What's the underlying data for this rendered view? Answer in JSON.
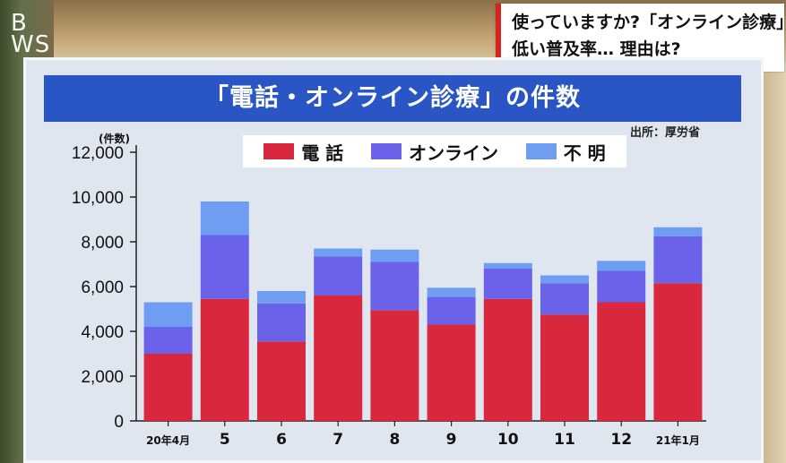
{
  "logo": {
    "line1": "B",
    "line2": "WS"
  },
  "caption": {
    "line1": "使っていますか?「オンライン診療」",
    "line2": "低い普及率… 理由は?"
  },
  "board": {
    "banner": "「電話・オンライン診療」の件数",
    "source": "出所：厚労省"
  },
  "colors": {
    "phone": "#d9283d",
    "online": "#6a63ea",
    "unknown": "#6f9df2"
  },
  "chart_data": {
    "type": "bar",
    "stacked": true,
    "title": "「電話・オンライン診療」の件数",
    "ylabel": "(件数)",
    "xlabel": "",
    "ylim": [
      0,
      12000
    ],
    "yticks": [
      "0",
      "2,000",
      "4,000",
      "6,000",
      "8,000",
      "10,000",
      "12,000"
    ],
    "ytick_values": [
      0,
      2000,
      4000,
      6000,
      8000,
      10000,
      12000
    ],
    "categories": [
      "20年4月",
      "5",
      "6",
      "7",
      "8",
      "9",
      "10",
      "11",
      "12",
      "21年1月"
    ],
    "series": [
      {
        "name": "電 話",
        "color": "#d9283d",
        "values": [
          3000,
          5450,
          3550,
          5600,
          4950,
          4300,
          5450,
          4750,
          5300,
          6150
        ]
      },
      {
        "name": "オンライン",
        "color": "#6a63ea",
        "values": [
          1200,
          2850,
          1700,
          1750,
          2150,
          1250,
          1350,
          1400,
          1400,
          2100
        ]
      },
      {
        "name": "不 明",
        "color": "#6f9df2",
        "values": [
          1100,
          1500,
          550,
          350,
          550,
          400,
          250,
          350,
          450,
          400
        ]
      }
    ],
    "legend_position": "top-center",
    "grid": false
  }
}
